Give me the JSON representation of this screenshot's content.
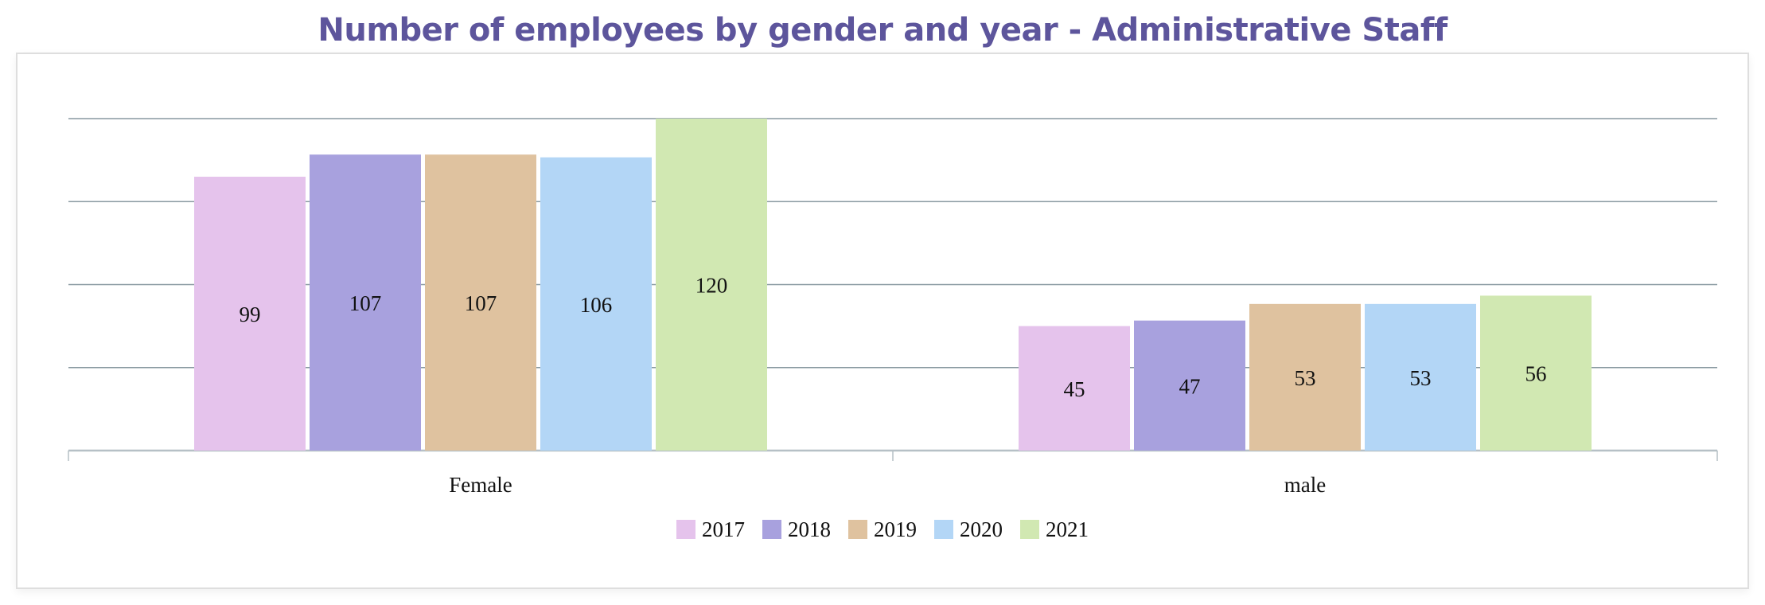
{
  "chart_data": {
    "type": "bar",
    "title": "Number of employees by gender and year - Administrative Staff",
    "categories": [
      "Female",
      "male"
    ],
    "series": [
      {
        "name": "2017",
        "color": "#e5c3ec",
        "values": [
          99,
          45
        ]
      },
      {
        "name": "2018",
        "color": "#a8a1de",
        "values": [
          107,
          47
        ]
      },
      {
        "name": "2019",
        "color": "#dfc29f",
        "values": [
          107,
          53
        ]
      },
      {
        "name": "2020",
        "color": "#b3d6f6",
        "values": [
          106,
          53
        ]
      },
      {
        "name": "2021",
        "color": "#d1e8b2",
        "values": [
          120,
          56
        ]
      }
    ],
    "ylim": [
      0,
      120
    ],
    "grid": true,
    "legend_position": "bottom-center",
    "xlabel": "",
    "ylabel": ""
  },
  "colors": {
    "title": "#5d559c",
    "grid": "#8898a0",
    "axis": "#b6c0c6"
  }
}
